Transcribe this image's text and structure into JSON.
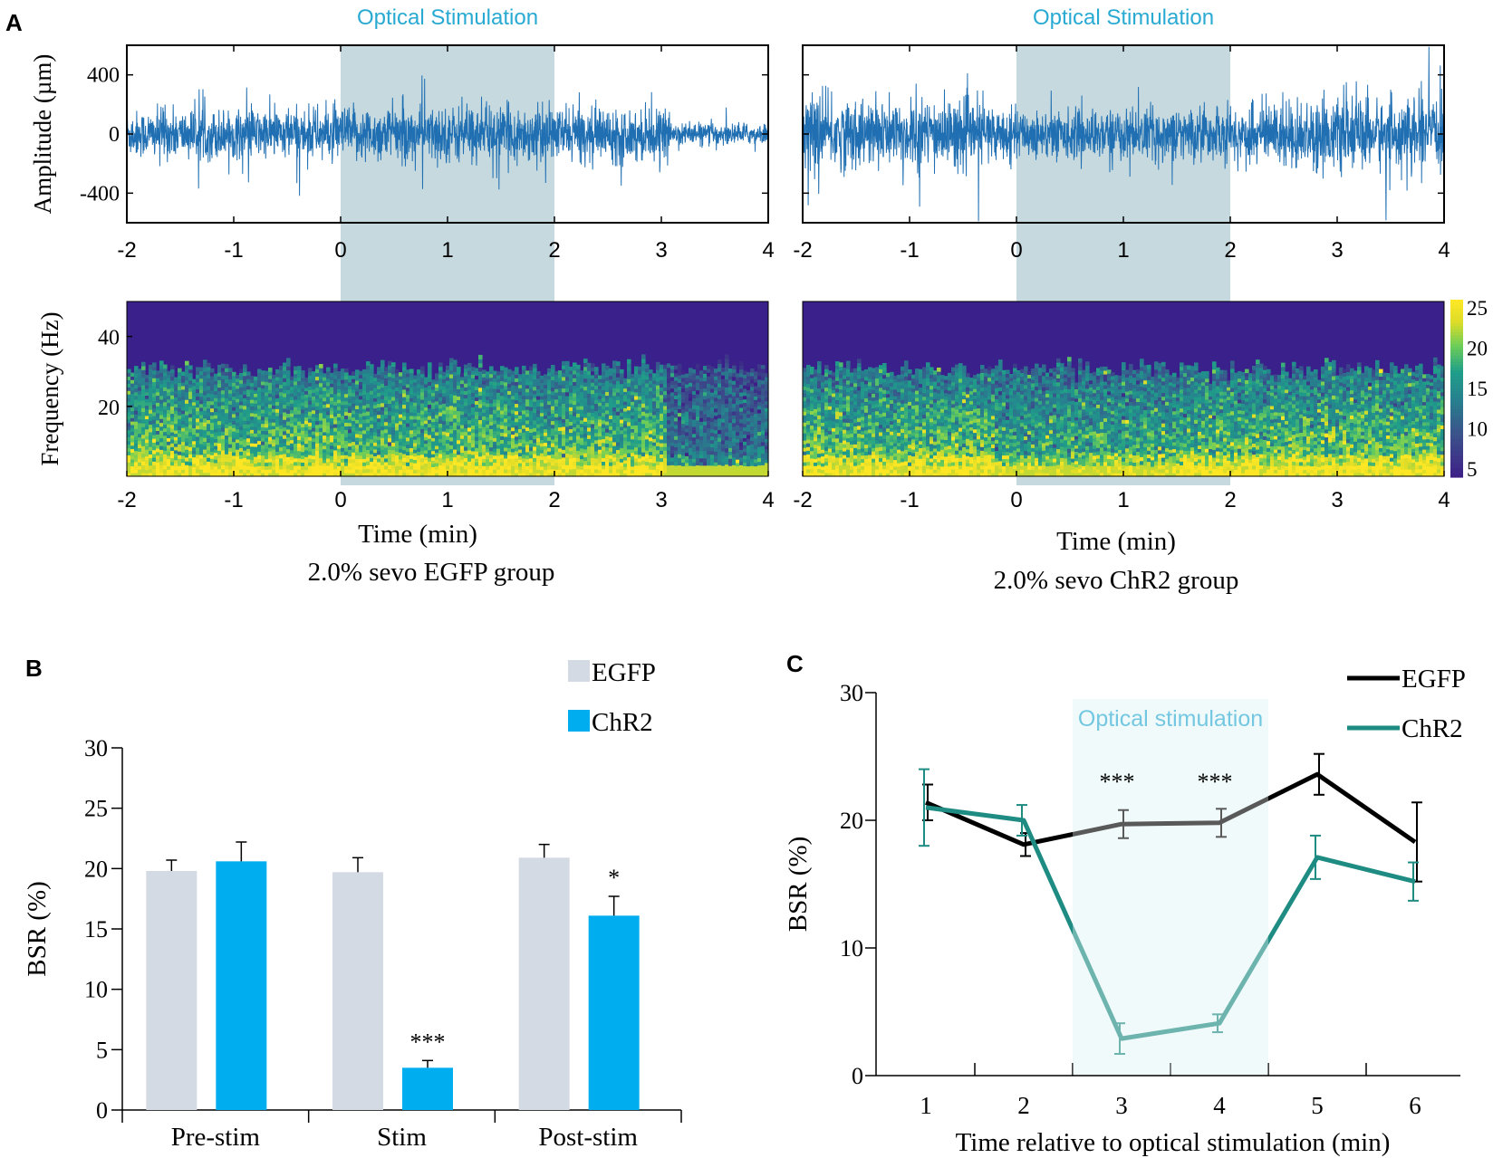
{
  "colors": {
    "trace": "#1f6fb2",
    "stim_shade": "#c5d9df",
    "egfp_bar": "#d3dae3",
    "chr2_bar": "#00aeef",
    "egfp_line": "#000000",
    "chr2_line": "#1e8c82",
    "stim_box": "#e8f7f8",
    "title_cyan": "#29aad2",
    "axis": "#000000"
  },
  "chart_data": [
    {
      "panel_label": "A",
      "type": "line",
      "title": "Optical Stimulation",
      "ylabel": "Amplitude (µm)",
      "xlim": [
        -2,
        4
      ],
      "ylim": [
        -600,
        600
      ],
      "xticks": [
        "-2",
        "-1",
        "0",
        "1",
        "2",
        "3",
        "4"
      ],
      "yticks": [
        "400",
        "0",
        "-400"
      ],
      "stim_window": [
        0,
        2
      ],
      "series": [
        {
          "values_note": "",
          "envelope": [
            [
              -2,
              140
            ],
            [
              -0.5,
              150
            ],
            [
              0,
              160
            ],
            [
              2,
              160
            ],
            [
              3,
              150
            ],
            [
              3.1,
              70
            ],
            [
              4,
              60
            ]
          ]
        }
      ]
    },
    {
      "panel_label": "",
      "type": "line",
      "title": "Optical Stimulation",
      "xlim": [
        -2,
        4
      ],
      "ylim": [
        -600,
        600
      ],
      "xticks": [
        "-2",
        "-1",
        "0",
        "1",
        "2",
        "3",
        "4"
      ],
      "stim_window": [
        0,
        2
      ],
      "series": [
        {
          "envelope": [
            [
              -2,
              210
            ],
            [
              -0.5,
              200
            ],
            [
              0,
              140
            ],
            [
              2,
              150
            ],
            [
              2.5,
              200
            ],
            [
              4,
              200
            ]
          ]
        }
      ]
    },
    {
      "panel_label": "",
      "type": "heatmap",
      "ylabel": "Frequency (Hz)",
      "xlabel": "Time (min)",
      "caption": "2.0% sevo EGFP group",
      "xlim": [
        -2,
        4
      ],
      "ylim": [
        0,
        50
      ],
      "xticks": [
        "-2",
        "-1",
        "0",
        "1",
        "2",
        "3",
        "4"
      ],
      "yticks": [
        "40",
        "20"
      ],
      "stim_window": [
        0,
        2
      ]
    },
    {
      "panel_label": "",
      "type": "heatmap",
      "xlabel": "Time (min)",
      "caption": "2.0% sevo ChR2 group",
      "xlim": [
        -2,
        4
      ],
      "ylim": [
        0,
        50
      ],
      "xticks": [
        "-2",
        "-1",
        "0",
        "1",
        "2",
        "3",
        "4"
      ],
      "stim_window": [
        0,
        2
      ],
      "colorbar": {
        "range": [
          4,
          26
        ],
        "ticks": [
          "25",
          "20",
          "15",
          "10",
          "5"
        ]
      }
    },
    {
      "panel_label": "B",
      "type": "bar",
      "ylabel": "BSR (%)",
      "ylim": [
        0,
        30
      ],
      "yticks": [
        "30",
        "25",
        "20",
        "15",
        "10",
        "5",
        "0"
      ],
      "categories": [
        "Pre-stim",
        "Stim",
        "Post-stim"
      ],
      "legend": "top-right",
      "series": [
        {
          "name": "EGFP",
          "values": [
            19.8,
            19.7,
            20.9
          ],
          "errors": [
            0.9,
            1.2,
            1.1
          ]
        },
        {
          "name": "ChR2",
          "values": [
            20.6,
            3.5,
            16.1
          ],
          "errors": [
            1.6,
            0.6,
            1.6
          ]
        }
      ],
      "annotations": [
        "",
        "***",
        "*"
      ]
    },
    {
      "panel_label": "C",
      "type": "line",
      "ylabel": "BSR (%)",
      "xlabel": "Time relative to optical stimulation (min)",
      "ylim": [
        0,
        30
      ],
      "yticks": [
        "30",
        "20",
        "10",
        "0"
      ],
      "x": [
        1,
        2,
        3,
        4,
        5,
        6
      ],
      "xticks": [
        "1",
        "2",
        "3",
        "4",
        "5",
        "6"
      ],
      "stim_label": "Optical stimulation",
      "stim_window": [
        2.5,
        4.5
      ],
      "legend": "top-right",
      "series": [
        {
          "name": "EGFP",
          "values": [
            21.4,
            18.1,
            19.7,
            19.8,
            23.6,
            18.3
          ],
          "errors": [
            1.4,
            0.9,
            1.1,
            1.1,
            1.6,
            3.1
          ]
        },
        {
          "name": "ChR2",
          "values": [
            21.0,
            20.0,
            2.9,
            4.1,
            17.1,
            15.2
          ],
          "errors": [
            3.0,
            1.2,
            1.2,
            0.7,
            1.7,
            1.5
          ]
        }
      ],
      "annotations": [
        {
          "x": 3,
          "text": "***"
        },
        {
          "x": 4,
          "text": "***"
        }
      ]
    }
  ]
}
